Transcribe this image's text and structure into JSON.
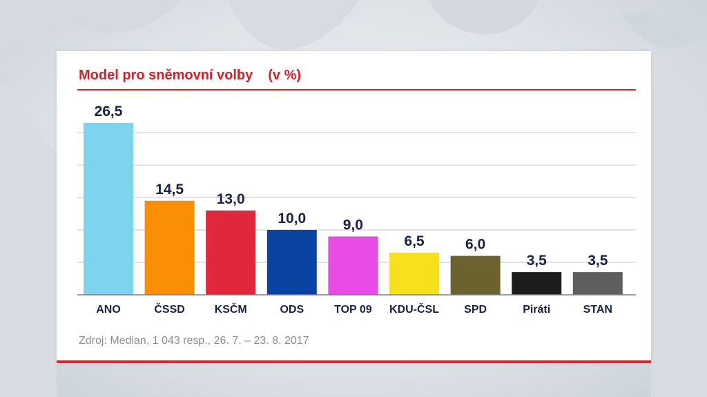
{
  "chart_data": {
    "type": "bar",
    "title": "Model pro sněmovní volby",
    "subtitle": "(v %)",
    "categories": [
      "ANO",
      "ČSSD",
      "KSČM",
      "ODS",
      "TOP 09",
      "KDU-ČSL",
      "SPD",
      "Piráti",
      "STAN"
    ],
    "values": [
      26.5,
      14.5,
      13.0,
      10.0,
      9.0,
      6.5,
      6.0,
      3.5,
      3.5
    ],
    "value_labels": [
      "26,5",
      "14,5",
      "13,0",
      "10,0",
      "9,0",
      "6,5",
      "6,0",
      "3,5",
      "3,5"
    ],
    "colors": [
      "#7dd4ec",
      "#fa8f05",
      "#e1283a",
      "#0a44a3",
      "#e84be6",
      "#f6e11c",
      "#6b6230",
      "#1c1c1c",
      "#5e5e5e"
    ],
    "ylim": [
      0,
      26.5
    ],
    "gridlines": [
      5,
      10,
      15,
      20,
      25
    ],
    "grid": true,
    "legend": "none"
  },
  "source_text": "Zdroj: Median, 1 043 resp., 26. 7. – 23. 8. 2017",
  "colors": {
    "accent": "#e0242b",
    "value_text": "#1a2147",
    "category_text": "#1a2147",
    "gridline": "#c3c3cf"
  }
}
